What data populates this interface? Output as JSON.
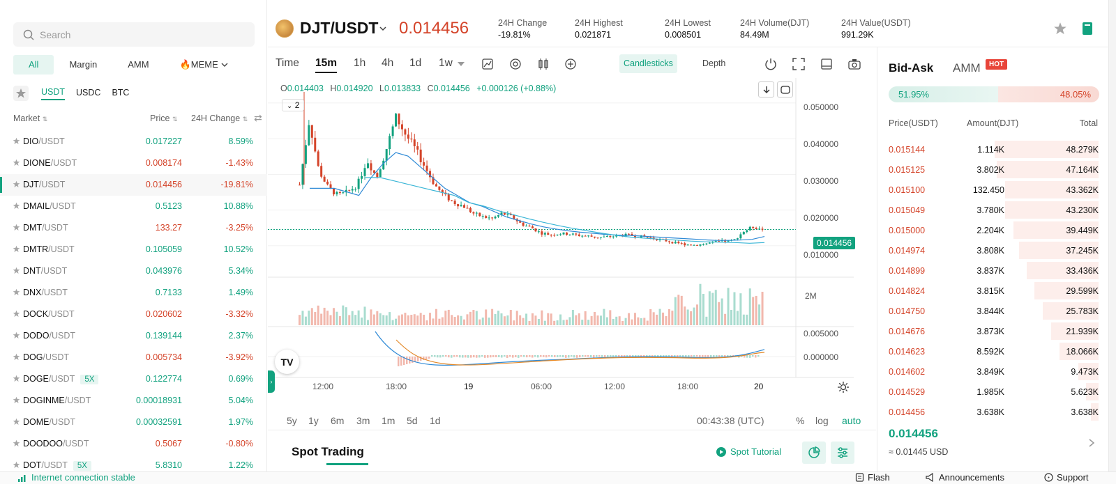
{
  "search": {
    "placeholder": "Search"
  },
  "categories": [
    {
      "label": "All",
      "active": true
    },
    {
      "label": "Margin",
      "active": false
    },
    {
      "label": "AMM",
      "active": false
    },
    {
      "label": "🔥MEME",
      "active": false
    }
  ],
  "quotes": [
    {
      "label": "USDT",
      "active": true
    },
    {
      "label": "USDC",
      "active": false
    },
    {
      "label": "BTC",
      "active": false
    }
  ],
  "market_header": {
    "market": "Market",
    "price": "Price",
    "change": "24H Change"
  },
  "markets": [
    {
      "base": "DIO",
      "quote": "/USDT",
      "price": "0.017227",
      "change": "8.59%",
      "dir": "up"
    },
    {
      "base": "DIONE",
      "quote": "/USDT",
      "price": "0.008174",
      "change": "-1.43%",
      "dir": "dn"
    },
    {
      "base": "DJT",
      "quote": "/USDT",
      "price": "0.014456",
      "change": "-19.81%",
      "dir": "dn",
      "selected": true
    },
    {
      "base": "DMAIL",
      "quote": "/USDT",
      "price": "0.5123",
      "change": "10.88%",
      "dir": "up"
    },
    {
      "base": "DMT",
      "quote": "/USDT",
      "price": "133.27",
      "change": "-3.25%",
      "dir": "dn"
    },
    {
      "base": "DMTR",
      "quote": "/USDT",
      "price": "0.105059",
      "change": "10.52%",
      "dir": "up"
    },
    {
      "base": "DNT",
      "quote": "/USDT",
      "price": "0.043976",
      "change": "5.34%",
      "dir": "up"
    },
    {
      "base": "DNX",
      "quote": "/USDT",
      "price": "0.7133",
      "change": "1.49%",
      "dir": "up"
    },
    {
      "base": "DOCK",
      "quote": "/USDT",
      "price": "0.020602",
      "change": "-3.32%",
      "dir": "dn"
    },
    {
      "base": "DODO",
      "quote": "/USDT",
      "price": "0.139144",
      "change": "2.37%",
      "dir": "up"
    },
    {
      "base": "DOG",
      "quote": "/USDT",
      "price": "0.005734",
      "change": "-3.92%",
      "dir": "dn"
    },
    {
      "base": "DOGE",
      "quote": "/USDT",
      "price": "0.122774",
      "change": "0.69%",
      "dir": "up",
      "leverage": "5X"
    },
    {
      "base": "DOGINME",
      "quote": "/USDT",
      "price": "0.00018931",
      "change": "5.04%",
      "dir": "up"
    },
    {
      "base": "DOME",
      "quote": "/USDT",
      "price": "0.00032591",
      "change": "1.97%",
      "dir": "up"
    },
    {
      "base": "DOODOO",
      "quote": "/USDT",
      "price": "0.5067",
      "change": "-0.80%",
      "dir": "dn"
    },
    {
      "base": "DOT",
      "quote": "/USDT",
      "price": "5.8310",
      "change": "1.22%",
      "dir": "up",
      "leverage": "5X"
    }
  ],
  "header": {
    "pair": "DJT/USDT",
    "last_price": "0.014456",
    "stats": [
      {
        "label": "24H Change",
        "value": "-19.81%",
        "dir": "dn"
      },
      {
        "label": "24H Highest",
        "value": "0.021871"
      },
      {
        "label": "24H Lowest",
        "value": "0.008501"
      },
      {
        "label": "24H Volume(DJT)",
        "value": "84.49M"
      },
      {
        "label": "24H Value(USDT)",
        "value": "991.29K"
      }
    ]
  },
  "toolbar": {
    "intervals": [
      "Time",
      "15m",
      "1h",
      "4h",
      "1d",
      "1w"
    ],
    "active_interval": "15m",
    "modes": [
      "Candlesticks",
      "Depth"
    ],
    "active_mode": "Candlesticks"
  },
  "chart": {
    "ohlc": {
      "o_label": "O",
      "o": "0.014403",
      "h_label": "H",
      "h": "0.014920",
      "l_label": "L",
      "l": "0.013833",
      "c_label": "C",
      "c": "0.014456",
      "delta": "+0.000126 (+0.88%)"
    },
    "indicator_count": "2",
    "price_ticks": [
      "0.050000",
      "0.040000",
      "0.030000",
      "0.020000",
      "0.010000"
    ],
    "current_price_tag": "0.014456",
    "volume_tick": "2M",
    "macd_ticks": [
      "0.005000",
      "0.000000"
    ],
    "time_ticks": [
      "12:00",
      "18:00",
      "19",
      "06:00",
      "12:00",
      "18:00",
      "20"
    ],
    "tv_logo": "TV"
  },
  "chart_data": {
    "type": "candlestick",
    "title": "",
    "y_range": [
      0.005,
      0.053
    ],
    "price_ticks": [
      0.05,
      0.04,
      0.03,
      0.02,
      0.01
    ],
    "last_price": 0.014456,
    "x_ticks": [
      "12:00",
      "18:00",
      "19",
      "06:00",
      "12:00",
      "18:00",
      "20"
    ],
    "close_path": [
      0.027,
      0.045,
      0.031,
      0.026,
      0.024,
      0.025,
      0.027,
      0.034,
      0.029,
      0.037,
      0.046,
      0.041,
      0.037,
      0.032,
      0.027,
      0.024,
      0.022,
      0.021,
      0.019,
      0.018,
      0.0175,
      0.019,
      0.018,
      0.016,
      0.015,
      0.0135,
      0.013,
      0.0133,
      0.0132,
      0.0128,
      0.0126,
      0.0122,
      0.0124,
      0.0127,
      0.0129,
      0.0126,
      0.0123,
      0.0118,
      0.0113,
      0.0107,
      0.0103,
      0.0101,
      0.0104,
      0.0109,
      0.0112,
      0.0113,
      0.0138,
      0.0152,
      0.0145
    ],
    "ma_path": [
      0.026,
      0.026,
      0.026,
      0.025,
      0.024,
      0.029,
      0.033,
      0.036,
      0.035,
      0.032,
      0.029,
      0.026,
      0.024,
      0.022,
      0.021,
      0.0195,
      0.018,
      0.017,
      0.016,
      0.0152,
      0.0146,
      0.0141,
      0.0137,
      0.0134,
      0.0131,
      0.0129,
      0.0128,
      0.0126,
      0.0124,
      0.0122,
      0.012,
      0.0118,
      0.0116,
      0.0114,
      0.0114,
      0.0115,
      0.0117,
      0.0125
    ],
    "ma_long_path": [
      0.029,
      0.029,
      0.028,
      0.027,
      0.026,
      0.025,
      0.024,
      0.022,
      0.021,
      0.0197,
      0.0186,
      0.0175,
      0.0165,
      0.0156,
      0.0148,
      0.0141,
      0.0134,
      0.0128,
      0.0123,
      0.012,
      0.0117,
      0.0115,
      0.0112,
      0.011,
      0.0109,
      0.0108,
      0.0106,
      0.0108
    ]
  },
  "range_bar": {
    "ranges": [
      "5y",
      "1y",
      "6m",
      "3m",
      "1m",
      "5d",
      "1d"
    ],
    "clock": "00:43:38 (UTC)",
    "options": [
      "%",
      "log",
      "auto"
    ],
    "active_option": "auto"
  },
  "spot": {
    "title": "Spot Trading",
    "tutorial": "Spot Tutorial"
  },
  "book": {
    "tabs": [
      "Bid-Ask",
      "AMM"
    ],
    "hot_badge": "HOT",
    "buy_ratio": "51.95%",
    "sell_ratio": "48.05%",
    "buy_fraction": 0.5195,
    "headers": [
      "Price(USDT)",
      "Amount(DJT)",
      "Total"
    ],
    "asks": [
      {
        "price": "0.015144",
        "amount": "1.114K",
        "total": "48.279K",
        "depth": 0.99
      },
      {
        "price": "0.015125",
        "amount": "3.802K",
        "total": "47.164K",
        "depth": 0.97
      },
      {
        "price": "0.015100",
        "amount": "132.450",
        "total": "43.362K",
        "depth": 0.89
      },
      {
        "price": "0.015049",
        "amount": "3.780K",
        "total": "43.230K",
        "depth": 0.89
      },
      {
        "price": "0.015000",
        "amount": "2.204K",
        "total": "39.449K",
        "depth": 0.81
      },
      {
        "price": "0.014974",
        "amount": "3.808K",
        "total": "37.245K",
        "depth": 0.76
      },
      {
        "price": "0.014899",
        "amount": "3.837K",
        "total": "33.436K",
        "depth": 0.69
      },
      {
        "price": "0.014824",
        "amount": "3.815K",
        "total": "29.599K",
        "depth": 0.61
      },
      {
        "price": "0.014750",
        "amount": "3.844K",
        "total": "25.783K",
        "depth": 0.53
      },
      {
        "price": "0.014676",
        "amount": "3.873K",
        "total": "21.939K",
        "depth": 0.45
      },
      {
        "price": "0.014623",
        "amount": "8.592K",
        "total": "18.066K",
        "depth": 0.37
      },
      {
        "price": "0.014602",
        "amount": "3.849K",
        "total": "9.473K",
        "depth": 0.19
      },
      {
        "price": "0.014529",
        "amount": "1.985K",
        "total": "5.623K",
        "depth": 0.12
      },
      {
        "price": "0.014456",
        "amount": "3.638K",
        "total": "3.638K",
        "depth": 0.07
      }
    ],
    "last": "0.014456",
    "last_usd": "≈ 0.01445 USD"
  },
  "status": {
    "connection": "Internet connection stable",
    "links": [
      "Flash",
      "Announcements",
      "Support"
    ]
  },
  "colors": {
    "up": "#12a27f",
    "down": "#d4442a",
    "accent": "#12a27f"
  }
}
